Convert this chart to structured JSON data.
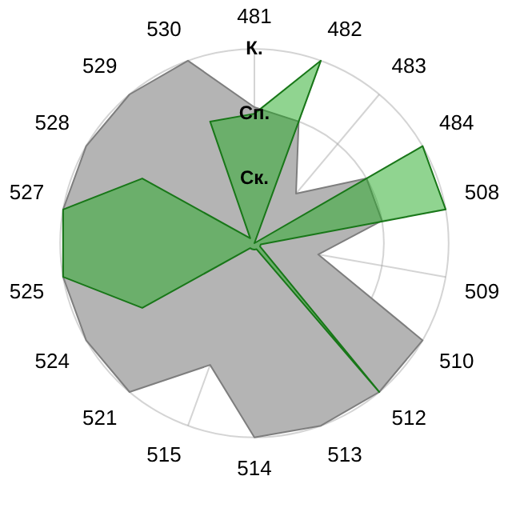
{
  "chart_data": {
    "type": "radar",
    "categories": [
      "481",
      "482",
      "483",
      "484",
      "508",
      "509",
      "510",
      "512",
      "513",
      "514",
      "515",
      "521",
      "524",
      "525",
      "527",
      "528",
      "529",
      "530"
    ],
    "series": [
      {
        "color": "#b4b4b4",
        "values": [
          2.1,
          2,
          1,
          2,
          2,
          1,
          3,
          3,
          3,
          3,
          2,
          3,
          3,
          3,
          3,
          3,
          3,
          3
        ]
      },
      {
        "color": "#22aa22",
        "values": [
          2,
          3,
          0,
          3,
          3,
          0.1,
          0.1,
          3,
          0.1,
          0.1,
          0.1,
          0.1,
          2,
          3,
          3,
          2,
          0.1,
          2
        ]
      }
    ],
    "ylim": [
      0,
      3
    ],
    "yticks": [
      {
        "value": 1,
        "label": "Ск."
      },
      {
        "value": 2,
        "label": "Сп."
      },
      {
        "value": 3,
        "label": "К."
      }
    ],
    "grid": true,
    "legend": false,
    "marker": "none"
  }
}
